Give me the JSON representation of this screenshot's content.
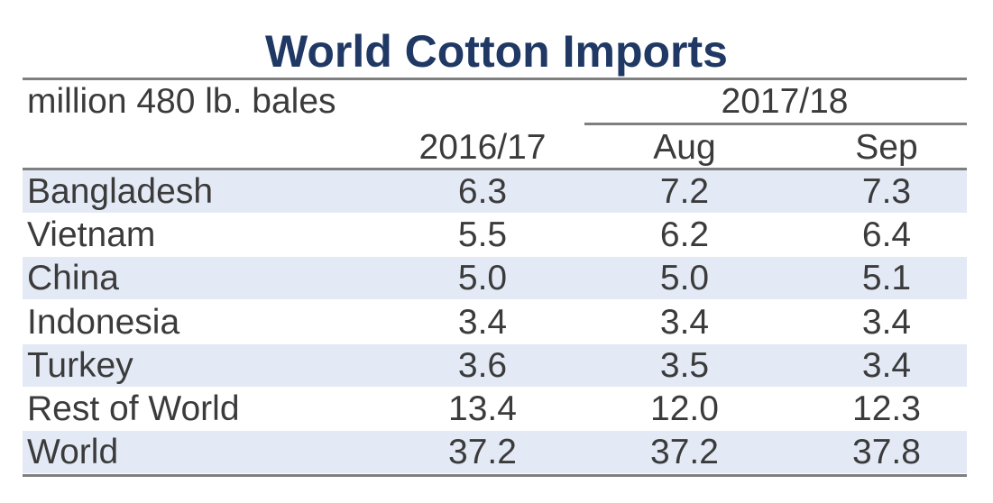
{
  "chart_data": {
    "type": "table",
    "title": "World Cotton Imports",
    "unit_label": "million 480 lb. bales",
    "group_header": "2017/18",
    "columns": [
      "2016/17",
      "Aug",
      "Sep"
    ],
    "rows": [
      {
        "label": "Bangladesh",
        "values": [
          "6.3",
          "7.2",
          "7.3"
        ]
      },
      {
        "label": "Vietnam",
        "values": [
          "5.5",
          "6.2",
          "6.4"
        ]
      },
      {
        "label": "China",
        "values": [
          "5.0",
          "5.0",
          "5.1"
        ]
      },
      {
        "label": "Indonesia",
        "values": [
          "3.4",
          "3.4",
          "3.4"
        ]
      },
      {
        "label": "Turkey",
        "values": [
          "3.6",
          "3.5",
          "3.4"
        ]
      },
      {
        "label": "Rest of World",
        "values": [
          "13.4",
          "12.0",
          "12.3"
        ]
      },
      {
        "label": "World",
        "values": [
          "37.2",
          "37.2",
          "37.8"
        ]
      }
    ],
    "colors": {
      "title": "#1f3864",
      "band": "#e3eaf6",
      "rule": "#7f7f7f",
      "text": "#3b3b3b"
    }
  }
}
